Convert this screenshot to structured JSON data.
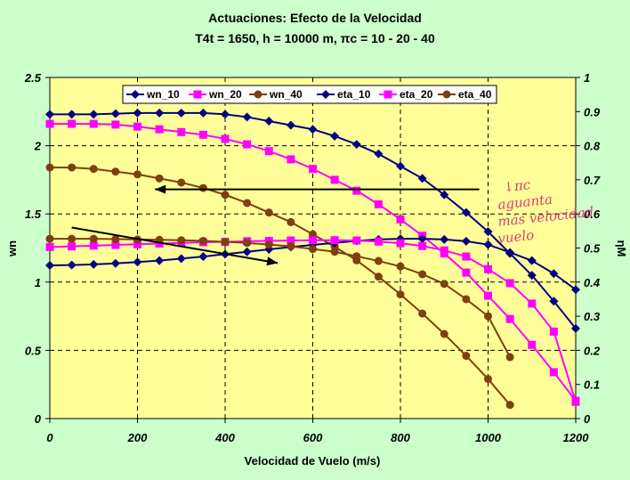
{
  "chart_data": {
    "type": "line",
    "title": "Actuaciones: Efecto de la Velocidad",
    "subtitle": "T4t = 1650, h = 10000 m, πc = 10 - 20 - 40",
    "xlabel": "Velocidad de Vuelo (m/s)",
    "ylabel": "wn",
    "y2label": "ηM",
    "xlim": [
      0,
      1200
    ],
    "ylim": [
      0,
      2.5
    ],
    "y2lim": [
      0,
      1
    ],
    "xticks": [
      "0",
      "200",
      "400",
      "600",
      "800",
      "1000",
      "1200"
    ],
    "yticks": [
      "0",
      "0.5",
      "1",
      "1.5",
      "2",
      "2.5"
    ],
    "y2ticks": [
      "0",
      "0.1",
      "0.2",
      "0.3",
      "0.4",
      "0.5",
      "0.6",
      "0.7",
      "0.8",
      "0.9",
      "1"
    ],
    "grid": true,
    "legend_position": "top",
    "plot_background": "#ffff99",
    "series": [
      {
        "name": "wn_10",
        "axis": "left",
        "color": "#000080",
        "marker": "diamond",
        "x": [
          0,
          50,
          100,
          150,
          200,
          250,
          300,
          350,
          400,
          450,
          500,
          550,
          600,
          650,
          700,
          750,
          800,
          850,
          900,
          950,
          1000,
          1050,
          1100,
          1150,
          1200
        ],
        "y": [
          2.23,
          2.23,
          2.23,
          2.235,
          2.24,
          2.24,
          2.24,
          2.24,
          2.23,
          2.21,
          2.18,
          2.15,
          2.12,
          2.07,
          2.01,
          1.94,
          1.85,
          1.76,
          1.64,
          1.51,
          1.37,
          1.21,
          1.05,
          0.86,
          0.66
        ]
      },
      {
        "name": "wn_20",
        "axis": "left",
        "color": "#ff00ff",
        "marker": "square",
        "x": [
          0,
          50,
          100,
          150,
          200,
          250,
          300,
          350,
          400,
          450,
          500,
          550,
          600,
          650,
          700,
          750,
          800,
          850,
          900,
          950,
          1000,
          1050,
          1100,
          1150,
          1200
        ],
        "y": [
          2.16,
          2.16,
          2.16,
          2.155,
          2.14,
          2.12,
          2.1,
          2.08,
          2.05,
          2.01,
          1.96,
          1.9,
          1.83,
          1.75,
          1.67,
          1.57,
          1.46,
          1.34,
          1.21,
          1.07,
          0.9,
          0.73,
          0.54,
          0.34,
          0.13
        ]
      },
      {
        "name": "wn_40",
        "axis": "left",
        "color": "#7f3f0f",
        "marker": "circle",
        "x": [
          0,
          50,
          100,
          150,
          200,
          250,
          300,
          350,
          400,
          450,
          500,
          550,
          600,
          650,
          700,
          750,
          800,
          850,
          900,
          950,
          1000,
          1050
        ],
        "y": [
          1.84,
          1.84,
          1.83,
          1.81,
          1.79,
          1.76,
          1.73,
          1.69,
          1.64,
          1.58,
          1.51,
          1.44,
          1.35,
          1.26,
          1.16,
          1.04,
          0.91,
          0.77,
          0.62,
          0.46,
          0.29,
          0.1
        ]
      },
      {
        "name": "eta_10",
        "axis": "right",
        "color": "#000080",
        "marker": "diamond",
        "x": [
          0,
          50,
          100,
          150,
          200,
          250,
          300,
          350,
          400,
          450,
          500,
          550,
          600,
          650,
          700,
          750,
          800,
          850,
          900,
          950,
          1000,
          1050,
          1100,
          1150,
          1200
        ],
        "y": [
          0.449,
          0.45,
          0.452,
          0.455,
          0.459,
          0.463,
          0.469,
          0.475,
          0.482,
          0.489,
          0.496,
          0.503,
          0.509,
          0.515,
          0.521,
          0.525,
          0.527,
          0.527,
          0.525,
          0.52,
          0.51,
          0.487,
          0.463,
          0.425,
          0.378
        ]
      },
      {
        "name": "eta_20",
        "axis": "right",
        "color": "#ff00ff",
        "marker": "square",
        "x": [
          0,
          50,
          100,
          150,
          200,
          250,
          300,
          350,
          400,
          450,
          500,
          550,
          600,
          650,
          700,
          750,
          800,
          850,
          900,
          950,
          1000,
          1050,
          1100,
          1150,
          1200
        ],
        "y": [
          0.503,
          0.505,
          0.507,
          0.509,
          0.511,
          0.513,
          0.515,
          0.517,
          0.518,
          0.52,
          0.521,
          0.522,
          0.523,
          0.523,
          0.522,
          0.519,
          0.514,
          0.506,
          0.493,
          0.475,
          0.438,
          0.397,
          0.337,
          0.255,
          0.049
        ]
      },
      {
        "name": "eta_40",
        "axis": "right",
        "color": "#7f3f0f",
        "marker": "circle",
        "x": [
          0,
          50,
          100,
          150,
          200,
          250,
          300,
          350,
          400,
          450,
          500,
          550,
          600,
          650,
          700,
          750,
          800,
          850,
          900,
          950,
          1000,
          1050
        ],
        "y": [
          0.527,
          0.527,
          0.527,
          0.526,
          0.525,
          0.524,
          0.523,
          0.521,
          0.518,
          0.515,
          0.51,
          0.505,
          0.497,
          0.489,
          0.476,
          0.462,
          0.446,
          0.423,
          0.395,
          0.35,
          0.3,
          0.18
        ]
      }
    ],
    "annotations": [
      {
        "kind": "arrow",
        "from": [
          980,
          1.68
        ],
        "to": [
          240,
          1.68
        ]
      },
      {
        "kind": "arrow",
        "from": [
          50,
          1.4
        ],
        "to": [
          520,
          1.14
        ]
      },
      {
        "kind": "handwriting",
        "lines": [
          "↓πc",
          "aguanta",
          "más velocidad",
          "vuelo"
        ]
      }
    ]
  }
}
